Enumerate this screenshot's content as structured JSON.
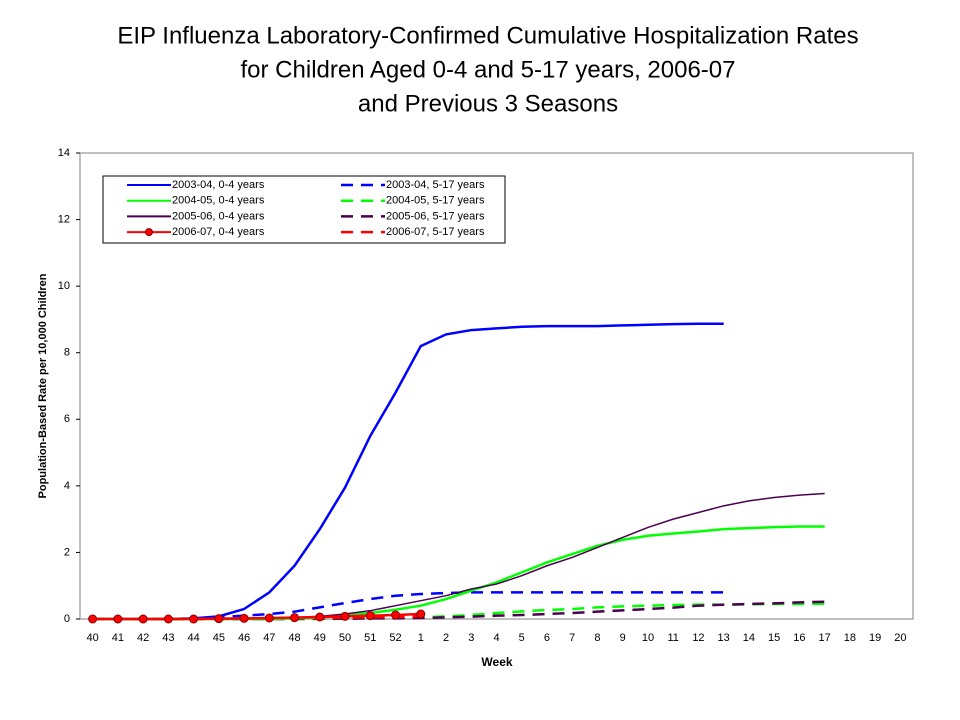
{
  "chart_data": {
    "type": "line",
    "title": [
      "EIP Influenza Laboratory-Confirmed Cumulative Hospitalization Rates",
      "for Children Aged 0-4 and 5-17 years, 2006-07",
      "and Previous 3 Seasons"
    ],
    "x_label": "Week",
    "y_label": "Population-Based Rate per 10,000 Children",
    "categories": [
      "40",
      "41",
      "42",
      "43",
      "44",
      "45",
      "46",
      "47",
      "48",
      "49",
      "50",
      "51",
      "52",
      "1",
      "2",
      "3",
      "4",
      "5",
      "6",
      "7",
      "8",
      "9",
      "10",
      "11",
      "12",
      "13",
      "14",
      "15",
      "16",
      "17",
      "18",
      "19",
      "20"
    ],
    "ylim": [
      0,
      14
    ],
    "yticks": [
      0,
      2,
      4,
      6,
      8,
      10,
      12,
      14
    ],
    "grid": false,
    "legend": "upper left",
    "series": [
      {
        "name": "2003-04, 0-4 years",
        "color": "#0000ff",
        "dash": false,
        "marker": false,
        "values": [
          0,
          0,
          0,
          0,
          0.02,
          0.08,
          0.3,
          0.8,
          1.6,
          2.7,
          3.95,
          5.5,
          6.8,
          8.2,
          8.55,
          8.68,
          8.73,
          8.78,
          8.8,
          8.8,
          8.8,
          8.82,
          8.84,
          8.86,
          8.87,
          8.87,
          null,
          null,
          null,
          null,
          null,
          null,
          null
        ]
      },
      {
        "name": "2004-05, 0-4 years",
        "color": "#00ff00",
        "dash": false,
        "marker": false,
        "values": [
          0,
          0,
          0,
          0,
          0,
          0,
          0,
          0,
          0.02,
          0.05,
          0.1,
          0.18,
          0.28,
          0.4,
          0.6,
          0.85,
          1.1,
          1.4,
          1.7,
          1.95,
          2.2,
          2.38,
          2.5,
          2.57,
          2.63,
          2.7,
          2.73,
          2.76,
          2.78,
          2.78,
          null,
          null,
          null
        ]
      },
      {
        "name": "2005-06, 0-4 years",
        "color": "#4b0050",
        "dash": false,
        "marker": false,
        "values": [
          0,
          0,
          0,
          0,
          0,
          0,
          0,
          0.02,
          0.05,
          0.08,
          0.15,
          0.25,
          0.4,
          0.55,
          0.7,
          0.9,
          1.05,
          1.3,
          1.6,
          1.85,
          2.15,
          2.45,
          2.75,
          3.0,
          3.2,
          3.4,
          3.55,
          3.65,
          3.72,
          3.77,
          null,
          null,
          null
        ]
      },
      {
        "name": "2006-07, 0-4 years",
        "color": "#ff0000",
        "dash": false,
        "marker": true,
        "values": [
          0,
          0,
          0,
          0,
          0,
          0.01,
          0.02,
          0.03,
          0.04,
          0.06,
          0.08,
          0.1,
          0.12,
          0.15,
          null,
          null,
          null,
          null,
          null,
          null,
          null,
          null,
          null,
          null,
          null,
          null,
          null,
          null,
          null,
          null,
          null,
          null,
          null
        ]
      },
      {
        "name": "2003-04, 5-17 years",
        "color": "#0000ff",
        "dash": true,
        "marker": false,
        "values": [
          0,
          0,
          0,
          0,
          0.02,
          0.05,
          0.1,
          0.15,
          0.22,
          0.35,
          0.48,
          0.6,
          0.7,
          0.75,
          0.78,
          0.8,
          0.8,
          0.8,
          0.8,
          0.8,
          0.8,
          0.8,
          0.8,
          0.8,
          0.8,
          0.8,
          null,
          null,
          null,
          null,
          null,
          null,
          null
        ]
      },
      {
        "name": "2004-05, 5-17 years",
        "color": "#00ff00",
        "dash": true,
        "marker": false,
        "values": [
          0,
          0,
          0,
          0,
          0,
          0,
          0,
          0,
          0,
          0,
          0.01,
          0.02,
          0.03,
          0.05,
          0.08,
          0.12,
          0.18,
          0.23,
          0.27,
          0.3,
          0.35,
          0.38,
          0.4,
          0.42,
          0.43,
          0.43,
          0.44,
          0.45,
          0.45,
          0.46,
          null,
          null,
          null
        ]
      },
      {
        "name": "2005-06, 5-17 years",
        "color": "#4b0050",
        "dash": true,
        "marker": false,
        "values": [
          0,
          0,
          0,
          0,
          0,
          0,
          0,
          0,
          0,
          0.01,
          0.01,
          0.02,
          0.02,
          0.03,
          0.05,
          0.07,
          0.1,
          0.12,
          0.15,
          0.18,
          0.22,
          0.26,
          0.3,
          0.34,
          0.4,
          0.43,
          0.45,
          0.47,
          0.5,
          0.52,
          null,
          null,
          null
        ]
      },
      {
        "name": "2006-07, 5-17 years",
        "color": "#ff0000",
        "dash": true,
        "marker": false,
        "values": [
          0,
          0,
          0,
          0,
          0,
          0,
          0.01,
          0.01,
          0.02,
          0.03,
          0.04,
          0.05,
          0.06,
          0.08,
          null,
          null,
          null,
          null,
          null,
          null,
          null,
          null,
          null,
          null,
          null,
          null,
          null,
          null,
          null,
          null,
          null,
          null,
          null
        ]
      }
    ]
  }
}
